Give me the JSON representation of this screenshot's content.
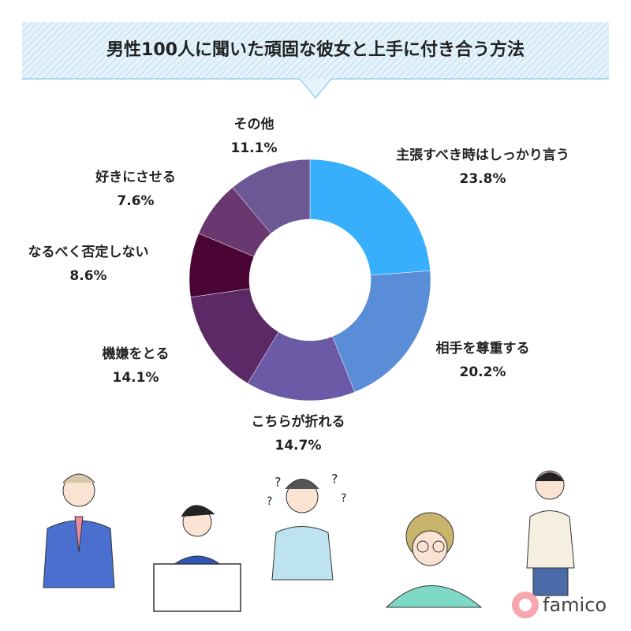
{
  "chart_data": {
    "type": "donut",
    "title": "男性100人に聞いた頑固な彼女と上手に付き合う方法",
    "categories": [
      "主張すべき時はしっかり言う",
      "相手を尊重する",
      "こちらが折れる",
      "機嫌をとる",
      "なるべく否定しない",
      "好きにさせる",
      "その他"
    ],
    "values": [
      23.8,
      20.2,
      14.7,
      14.1,
      8.6,
      7.6,
      11.1
    ],
    "value_labels": [
      "23.8%",
      "20.2%",
      "14.7%",
      "14.1%",
      "8.6%",
      "7.6%",
      "11.1%"
    ],
    "colors": [
      "#38affc",
      "#5a8dd8",
      "#6b5aa6",
      "#5c2865",
      "#4a0535",
      "#6a3870",
      "#6d5896"
    ]
  },
  "brand": "famico"
}
